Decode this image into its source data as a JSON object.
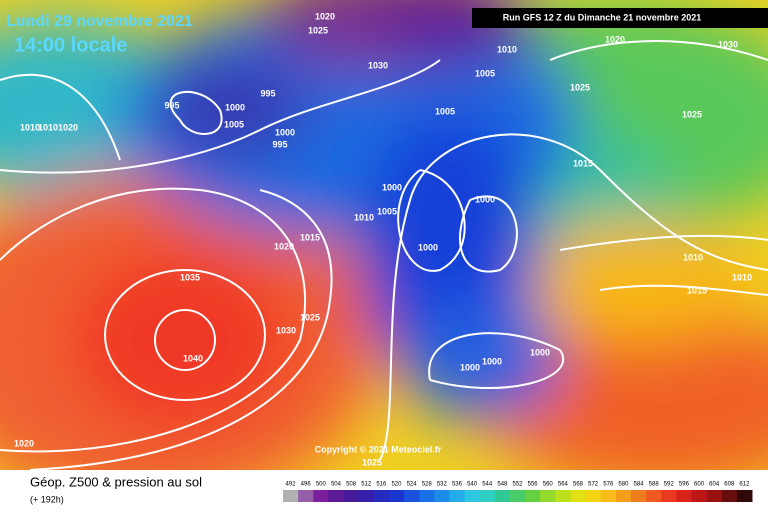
{
  "header": {
    "date": "Lundi 29 novembre 2021",
    "time": "14:00 locale",
    "run": "Run GFS 12 Z du Dimanche 21 novembre 2021"
  },
  "copyright": "Copyright © 2021 Meteociel.fr",
  "isobar_labels": [
    "1020",
    "1025",
    "1020",
    "1030",
    "1010",
    "1030",
    "1005",
    "1025",
    "995",
    "1000",
    "995",
    "1005",
    "1005",
    "1025",
    "1010",
    "1010",
    "1020",
    "1000",
    "995",
    "1015",
    "1000",
    "1000",
    "1005",
    "1010",
    "1015",
    "1020",
    "1000",
    "1010",
    "1010",
    "1015",
    "1035",
    "1025",
    "1030",
    "1040",
    "1000",
    "1000",
    "1000",
    "1020",
    "1025"
  ],
  "footer": {
    "title": "Géop. Z500 & pression au sol",
    "lead": "(+ 192h)"
  },
  "colorbar": [
    492,
    496,
    500,
    504,
    508,
    512,
    516,
    520,
    524,
    528,
    532,
    536,
    540,
    544,
    548,
    552,
    556,
    560,
    564,
    568,
    572,
    576,
    580,
    584,
    588,
    592,
    596,
    600,
    604,
    608,
    612
  ]
}
